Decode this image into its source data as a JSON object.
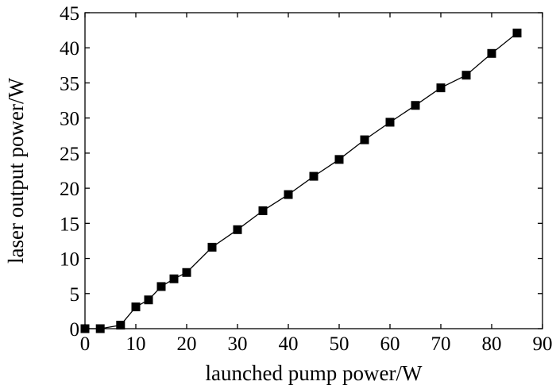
{
  "chart_data": {
    "type": "line",
    "title": "",
    "xlabel": "launched pump power/W",
    "ylabel": "laser output power/W",
    "xlim": [
      0,
      90
    ],
    "ylim": [
      0,
      45
    ],
    "xticks": [
      0,
      10,
      20,
      30,
      40,
      50,
      60,
      70,
      80,
      90
    ],
    "yticks": [
      0,
      5,
      10,
      15,
      20,
      25,
      30,
      35,
      40,
      45
    ],
    "grid": false,
    "marker": "square",
    "color": "#000000",
    "series": [
      {
        "x": [
          0,
          3,
          7,
          10,
          12.5,
          15,
          17.5,
          20,
          25,
          30,
          35,
          40,
          45,
          50,
          55,
          60,
          65,
          70,
          75,
          80,
          85
        ],
        "y": [
          0,
          0,
          0.5,
          3.1,
          4.1,
          6.0,
          7.1,
          8.0,
          11.6,
          14.1,
          16.8,
          19.1,
          21.7,
          24.1,
          26.9,
          29.4,
          31.8,
          34.3,
          36.1,
          39.2,
          42.1
        ]
      }
    ]
  }
}
